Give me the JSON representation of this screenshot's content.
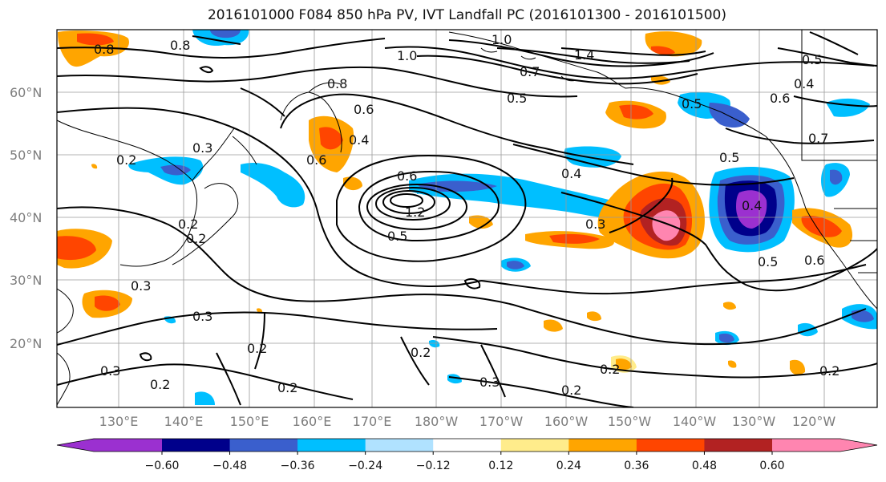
{
  "title": "2016101000 F084 850 hPa PV, IVT Landfall PC (2016101300 - 2016101500)",
  "latitude_labels": [
    "60°N",
    "50°N",
    "40°N",
    "30°N",
    "20°N"
  ],
  "longitude_labels": [
    "130°E",
    "140°E",
    "150°E",
    "160°E",
    "170°E",
    "180°W",
    "170°W",
    "160°W",
    "150°W",
    "140°W",
    "130°W",
    "120°W"
  ],
  "colorbar": {
    "colors": [
      "#9b30d0",
      "#00008b",
      "#3a5fcd",
      "#00bfff",
      "#b0e2ff",
      "#ffffff",
      "#ffec8b",
      "#ffa500",
      "#ff4500",
      "#b22222",
      "#ff85b0"
    ],
    "tick_labels": [
      "−0.60",
      "−0.48",
      "−0.36",
      "−0.24",
      "−0.12",
      "0.12",
      "0.24",
      "0.36",
      "0.48",
      "0.60"
    ]
  },
  "contour_labels": [
    "0.8",
    "0.8",
    "1.0",
    "1.0",
    "1.4",
    "0.7",
    "0.8",
    "0.5",
    "0.6",
    "0.5",
    "0.6",
    "0.4",
    "0.6",
    "0.2",
    "0.3",
    "0.2",
    "0.6",
    "0.4",
    "1.2",
    "0.5",
    "0.4",
    "0.5",
    "0.3",
    "0.4",
    "0.5",
    "0.6",
    "0.3",
    "0.3",
    "0.2",
    "0.3",
    "0.2",
    "0.2",
    "0.2",
    "0.3",
    "0.2",
    "0.2",
    "0.2",
    "0.2",
    "0.7",
    "0.5"
  ]
}
